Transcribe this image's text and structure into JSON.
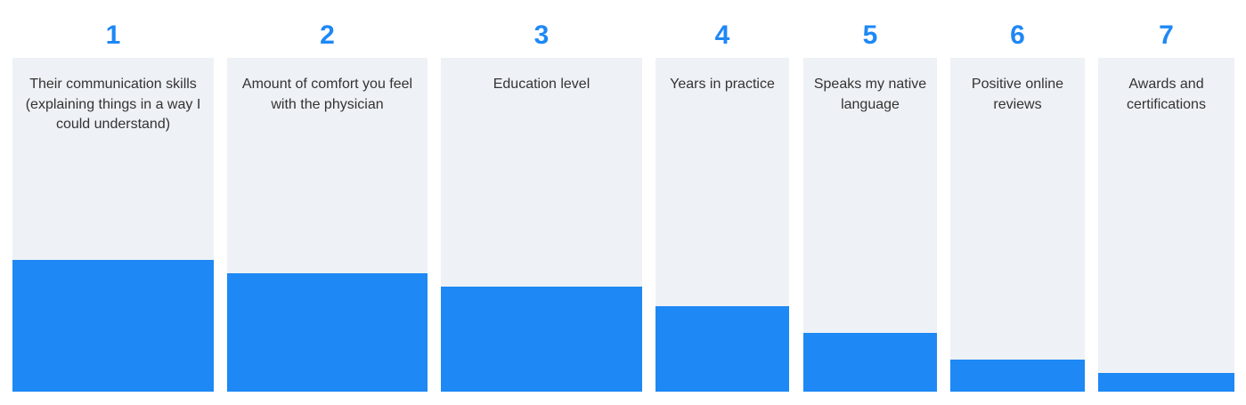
{
  "chart_data": {
    "type": "bar",
    "ranks": [
      "1",
      "2",
      "3",
      "4",
      "5",
      "6",
      "7"
    ],
    "categories": [
      "Their communication skills (explaining things in a way I could understand)",
      "Amount of comfort you feel with the physician",
      "Education level",
      "Years in practice",
      "Speaks my native language",
      "Positive online reviews",
      "Awards and certifications"
    ],
    "values": [
      0.395,
      0.355,
      0.315,
      0.255,
      0.175,
      0.095,
      0.055
    ],
    "ylim": [
      0,
      1
    ],
    "colors": {
      "bar": "#1e88f5",
      "panel": "#eef1f5",
      "rank": "#1e88f5",
      "label": "#333333"
    }
  }
}
